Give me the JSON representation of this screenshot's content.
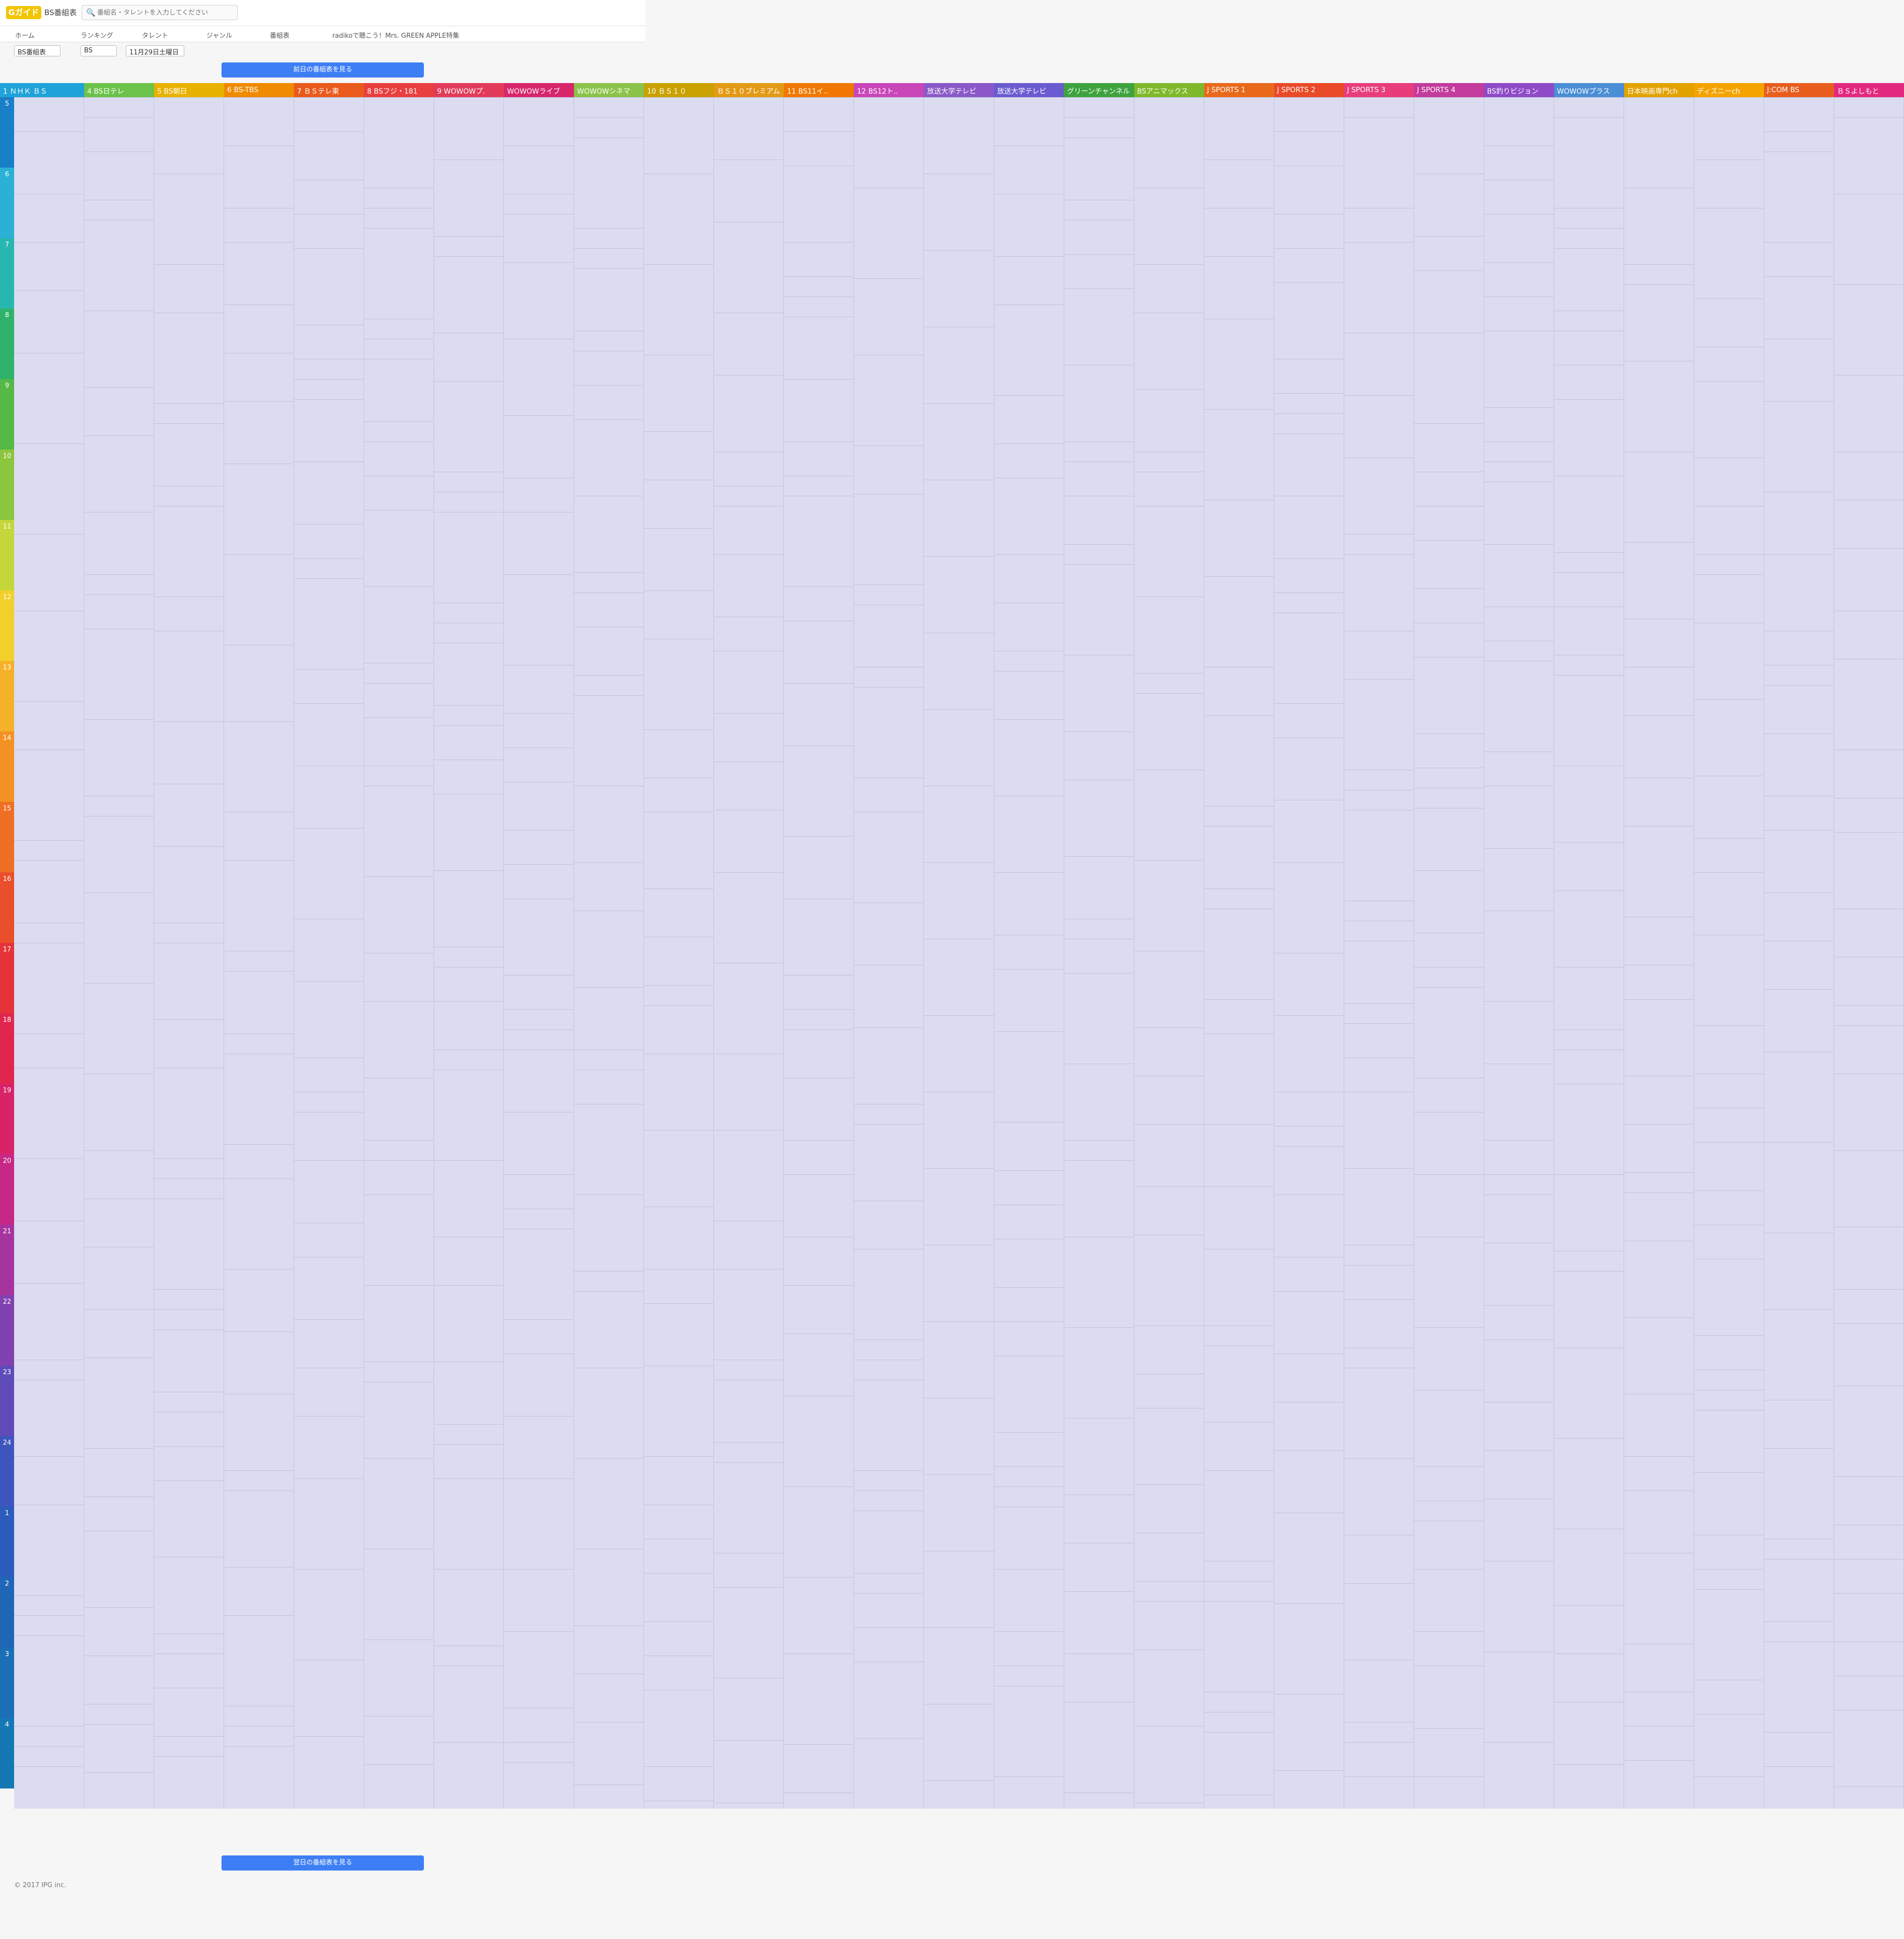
{
  "app": {
    "logo": "Gガイド",
    "title": "BS番組表"
  },
  "search": {
    "placeholder": "番組名・タレントを入力してください"
  },
  "nav": {
    "items": [
      "ホーム",
      "ランキング",
      "タレント",
      "ジャンル",
      "番組表"
    ],
    "promo": "radikoで聴こう！Mrs. GREEN APPLE特集"
  },
  "controls": {
    "region": "BS番組表",
    "band": "BS",
    "date": "11月29日土曜日"
  },
  "buttons": {
    "prev": "前日の番組表を見る",
    "next": "翌日の番組表を見る"
  },
  "footer": {
    "copyright": "© 2017 IPG inc."
  },
  "hours": [
    "5",
    "6",
    "7",
    "8",
    "9",
    "10",
    "11",
    "12",
    "13",
    "14",
    "15",
    "16",
    "17",
    "18",
    "19",
    "20",
    "21",
    "22",
    "23",
    "24",
    "1",
    "2",
    "3",
    "4"
  ],
  "channels": [
    {
      "name": "1 ＮＨＫ ＢＳ",
      "color": "#1fa3d8"
    },
    {
      "name": "4 BS日テレ",
      "color": "#6cc24a"
    },
    {
      "name": "5 BS朝日",
      "color": "#e8b200"
    },
    {
      "name": "6 BS-TBS",
      "color": "#f08a00"
    },
    {
      "name": "7 ＢＳテレ東",
      "color": "#e95a1c"
    },
    {
      "name": "8 BSフジ・181",
      "color": "#ea3f3f"
    },
    {
      "name": "9 WOWOWプ.",
      "color": "#e23b5a"
    },
    {
      "name": "WOWOWライブ",
      "color": "#d7266b"
    },
    {
      "name": "WOWOWシネマ",
      "color": "#8bc34a"
    },
    {
      "name": "10 ＢＳ１０",
      "color": "#c9a100"
    },
    {
      "name": "ＢＳ１０プレミアム",
      "color": "#e39a15"
    },
    {
      "name": "11 BS11イ..",
      "color": "#f07800"
    },
    {
      "name": "12 BS12ト..",
      "color": "#c946b9"
    },
    {
      "name": "放送大学テレビ",
      "color": "#8a58c8"
    },
    {
      "name": "放送大学テレビ",
      "color": "#6a5bd0"
    },
    {
      "name": "グリーンチャンネル",
      "color": "#3ea33e"
    },
    {
      "name": "BSアニマックス",
      "color": "#7fb92b"
    },
    {
      "name": "J SPORTS 1",
      "color": "#e9691b"
    },
    {
      "name": "J SPORTS 2",
      "color": "#ea4a28"
    },
    {
      "name": "J SPORTS 3",
      "color": "#e83d7a"
    },
    {
      "name": "J SPORTS 4",
      "color": "#c33b9c"
    },
    {
      "name": "BS釣りビジョン",
      "color": "#8e4ac7"
    },
    {
      "name": "WOWOWプラス",
      "color": "#4a8ed6"
    },
    {
      "name": "日本映画専門ch",
      "color": "#e2a200"
    },
    {
      "name": "ディズニーch",
      "color": "#f5a300"
    },
    {
      "name": "J:COM BS",
      "color": "#e85d1e"
    },
    {
      "name": "ＢＳよしもと",
      "color": "#e3297f"
    }
  ]
}
